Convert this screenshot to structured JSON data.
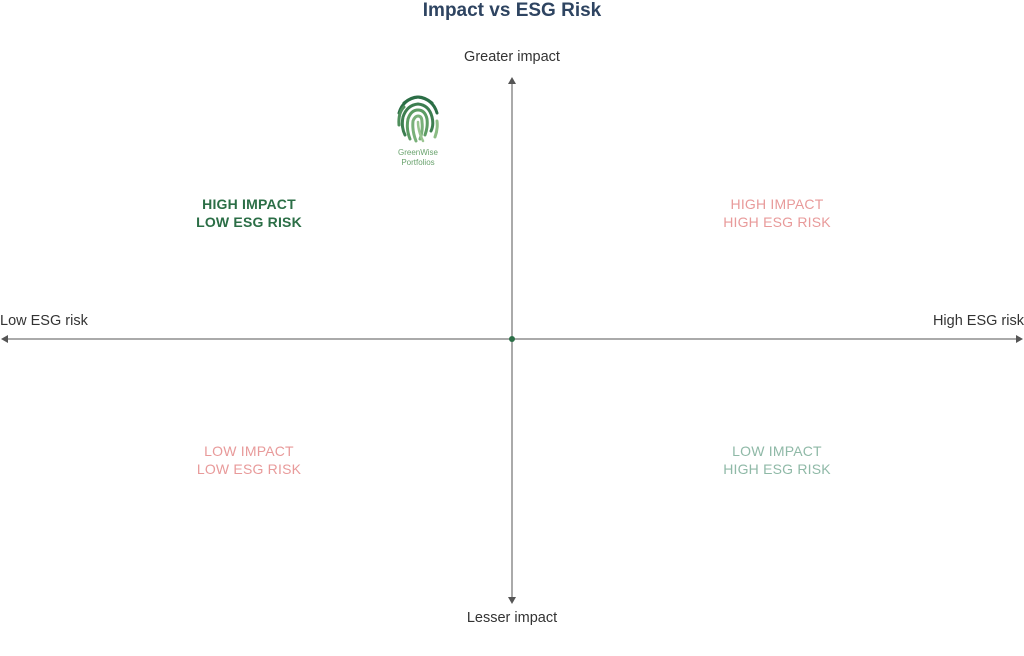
{
  "title": "Impact vs ESG Risk",
  "axes": {
    "top": "Greater impact",
    "bottom": "Lesser impact",
    "left": "Low ESG risk",
    "right": "High ESG risk"
  },
  "quadrants": {
    "top_left": {
      "line1": "HIGH IMPACT",
      "line2": "LOW ESG RISK",
      "color": "#2b6e46"
    },
    "top_right": {
      "line1": "HIGH IMPACT",
      "line2": "HIGH ESG RISK",
      "color": "#e89a9a"
    },
    "bottom_left": {
      "line1": "LOW IMPACT",
      "line2": "LOW ESG RISK",
      "color": "#e89a9a"
    },
    "bottom_right": {
      "line1": "LOW IMPACT",
      "line2": "HIGH ESG RISK",
      "color": "#8fb9a7"
    }
  },
  "logo": {
    "icon": "fingerprint-icon",
    "line1": "GreenWise",
    "line2": "Portfolios",
    "color": "#2b6e46"
  },
  "colors": {
    "title": "#2e4461",
    "axis": "#555555",
    "origin": "#2b6e46"
  }
}
